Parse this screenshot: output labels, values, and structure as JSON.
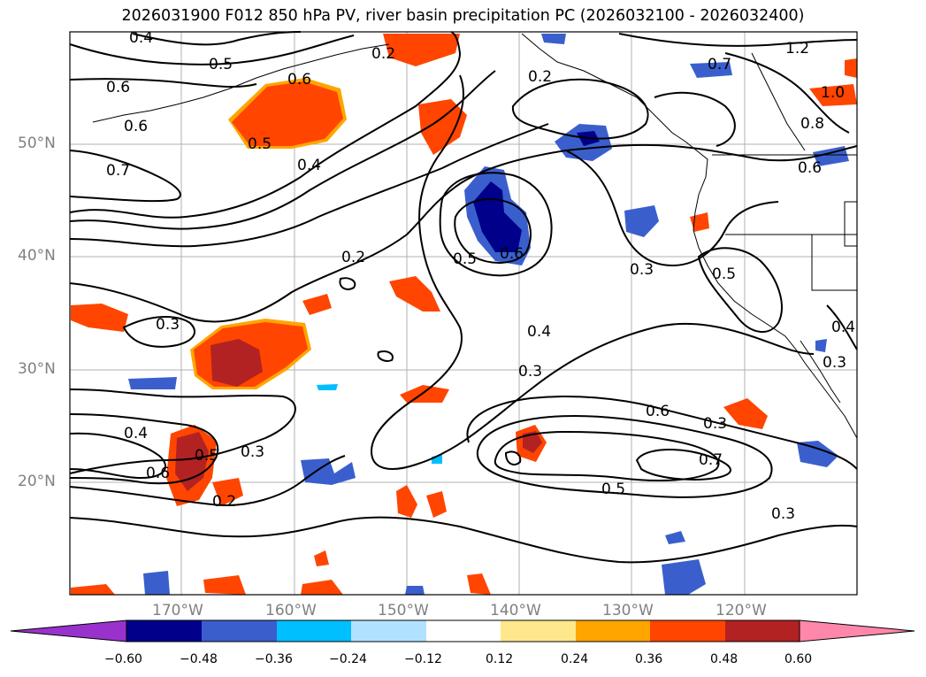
{
  "title": "2026031900 F012 850 hPa PV, river basin precipitation PC (2026032100 - 2026032400)",
  "lat_labels": [
    "50°N",
    "40°N",
    "30°N",
    "20°N"
  ],
  "lon_labels": [
    "170°W",
    "160°W",
    "150°W",
    "140°W",
    "130°W",
    "120°W"
  ],
  "contour_labels": [
    "0.4",
    "0.5",
    "0.6",
    "0.6",
    "0.5",
    "0.7",
    "0.4",
    "0.2",
    "0.3",
    "0.4",
    "0.3",
    "0.4",
    "0.6",
    "0.5",
    "0.3",
    "0.7",
    "0.5",
    "0.3",
    "0.2",
    "0.6",
    "0.5",
    "0.6",
    "0.2",
    "0.3",
    "0.5",
    "0.6",
    "1.2",
    "0.7",
    "1.0",
    "0.8",
    "0.6",
    "0.4",
    "0.3",
    "0.3",
    "0.2"
  ],
  "colorbar": {
    "ticks": [
      "−0.60",
      "−0.48",
      "−0.36",
      "−0.24",
      "−0.12",
      "0.12",
      "0.24",
      "0.36",
      "0.48",
      "0.60"
    ],
    "colors": [
      "#9932cc",
      "#00008b",
      "#3a5fcd",
      "#00bfff",
      "#b0e2ff",
      "#ffffff",
      "#ffe88c",
      "#ffa500",
      "#ff4500",
      "#b22222",
      "#ff88aa"
    ]
  }
}
